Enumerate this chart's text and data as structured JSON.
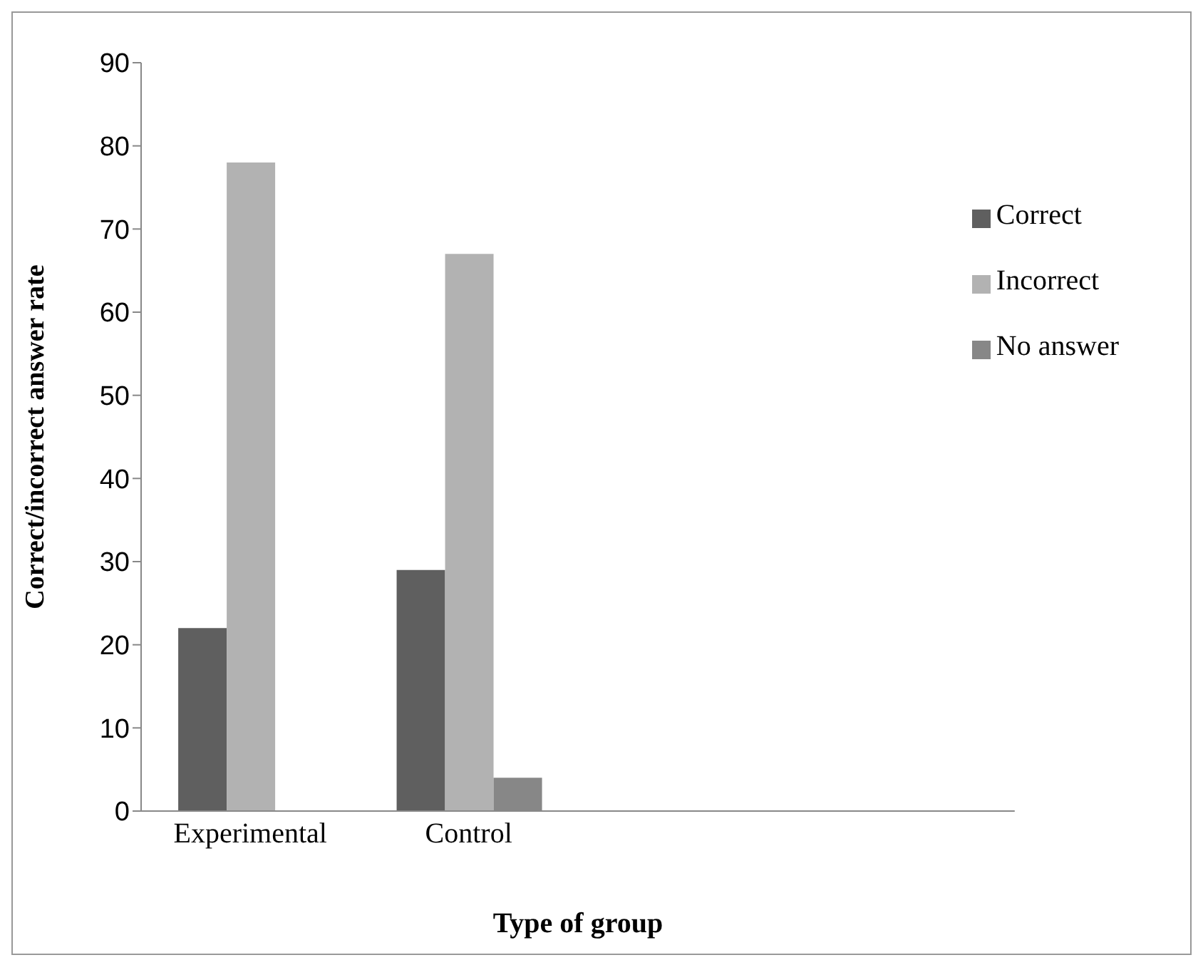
{
  "chart_data": {
    "type": "bar",
    "xlabel": "Type of group",
    "ylabel": "Correct/incorrect answer rate",
    "categories": [
      "Experimental",
      "Control",
      null,
      null
    ],
    "series": [
      {
        "name": "Correct",
        "color": "#5f5f5f",
        "values": [
          22,
          29,
          null,
          null
        ]
      },
      {
        "name": "Incorrect",
        "color": "#b2b2b2",
        "values": [
          78,
          67,
          null,
          null
        ]
      },
      {
        "name": "No answer",
        "color": "#878787",
        "values": [
          null,
          4,
          null,
          null
        ]
      }
    ],
    "ylim": [
      0,
      90
    ],
    "yticks": [
      0,
      10,
      20,
      30,
      40,
      50,
      60,
      70,
      80,
      90
    ],
    "grid": false,
    "legend": "top right"
  }
}
